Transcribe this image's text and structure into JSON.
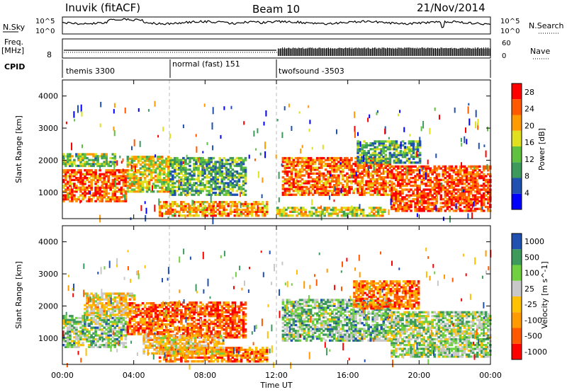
{
  "header": {
    "station": "Inuvik (fitACF)",
    "beam": "Beam 10",
    "date": "21/Nov/2014"
  },
  "noise_panel": {
    "left_label": "N.Sky",
    "right_label": "N.Search",
    "left_ticks": [
      "10^5",
      "10^0"
    ],
    "right_ticks": [
      "10^5",
      "10^0"
    ]
  },
  "freq_panel": {
    "left_label_1": "Freq.",
    "left_label_2": "[MHz]",
    "left_tick": "8",
    "right_label": "Nave",
    "right_ticks": [
      "60",
      "0"
    ]
  },
  "cpid_panel": {
    "label": "CPID",
    "segments": [
      {
        "name": "themis 3300",
        "start_h": 0
      },
      {
        "name": "normal (fast) 151",
        "start_h": 6
      },
      {
        "name": "twofsound -3503",
        "start_h": 12
      }
    ]
  },
  "colors": {
    "power_scale": [
      "#0000ff",
      "#2050b0",
      "#3d9a5b",
      "#60c040",
      "#e0e020",
      "#ff9a00",
      "#ff5a00",
      "#ff0000"
    ],
    "velocity_scale": [
      "#ff0000",
      "#ff5a00",
      "#ff9a00",
      "#ffc000",
      "#c8c8c8",
      "#70d040",
      "#3d9a5b",
      "#2050b0"
    ]
  },
  "chart_data": [
    {
      "type": "heatmap",
      "title": "",
      "xlabel": "Time UT",
      "ylabel": "Slant Range [km]",
      "x_ticks": [
        "00:00",
        "04:00",
        "08:00",
        "12:00",
        "16:00",
        "20:00",
        "00:00"
      ],
      "y_ticks": [
        1000,
        2000,
        3000,
        4000
      ],
      "ylim": [
        180,
        4500
      ],
      "colorbar": {
        "label": "Power [dB]",
        "ticks": [
          4,
          8,
          12,
          16,
          20,
          24,
          28
        ],
        "range": [
          0,
          30
        ]
      },
      "regions": [
        {
          "t0": 0.0,
          "t1": 3.6,
          "r0": 700,
          "r1": 1700,
          "level": 0.82
        },
        {
          "t0": 0.0,
          "t1": 3.0,
          "r0": 1800,
          "r1": 2200,
          "level": 0.45
        },
        {
          "t0": 3.6,
          "t1": 5.9,
          "r0": 1000,
          "r1": 2100,
          "level": 0.55
        },
        {
          "t0": 5.4,
          "t1": 11.5,
          "r0": 250,
          "r1": 700,
          "level": 0.7
        },
        {
          "t0": 6.0,
          "t1": 10.2,
          "r0": 900,
          "r1": 2100,
          "level": 0.38
        },
        {
          "t0": 12.3,
          "t1": 18.3,
          "r0": 900,
          "r1": 2100,
          "level": 0.78
        },
        {
          "t0": 12.0,
          "t1": 18.0,
          "r0": 250,
          "r1": 500,
          "level": 0.55
        },
        {
          "t0": 18.4,
          "t1": 24.0,
          "r0": 400,
          "r1": 1800,
          "level": 0.85
        },
        {
          "t0": 16.5,
          "t1": 20.0,
          "r0": 1900,
          "r1": 2600,
          "level": 0.35
        }
      ]
    },
    {
      "type": "heatmap",
      "title": "",
      "xlabel": "Time UT",
      "ylabel": "Slant Range [km]",
      "x_ticks": [
        "00:00",
        "04:00",
        "08:00",
        "12:00",
        "16:00",
        "20:00",
        "00:00"
      ],
      "y_ticks": [
        1000,
        2000,
        3000,
        4000
      ],
      "ylim": [
        180,
        4500
      ],
      "colorbar": {
        "label": "Velocity [m s^-1]",
        "ticks": [
          "1000",
          "500",
          "100",
          "25",
          "-25",
          "-100",
          "-500",
          "-1000"
        ]
      },
      "regions": [
        {
          "t0": 0.0,
          "t1": 3.6,
          "r0": 700,
          "r1": 1700,
          "level": 0.68
        },
        {
          "t0": 1.2,
          "t1": 4.0,
          "r0": 1700,
          "r1": 2400,
          "level": 0.45
        },
        {
          "t0": 3.6,
          "t1": 5.9,
          "r0": 1100,
          "r1": 2100,
          "level": 0.2
        },
        {
          "t0": 5.4,
          "t1": 11.5,
          "r0": 250,
          "r1": 700,
          "level": 0.25
        },
        {
          "t0": 6.0,
          "t1": 10.2,
          "r0": 1000,
          "r1": 2100,
          "level": 0.18
        },
        {
          "t0": 4.5,
          "t1": 9.0,
          "r0": 500,
          "r1": 1100,
          "level": 0.45
        },
        {
          "t0": 12.3,
          "t1": 18.3,
          "r0": 900,
          "r1": 2200,
          "level": 0.7
        },
        {
          "t0": 16.3,
          "t1": 20.0,
          "r0": 1900,
          "r1": 2800,
          "level": 0.25
        },
        {
          "t0": 18.4,
          "t1": 24.0,
          "r0": 400,
          "r1": 1800,
          "level": 0.65
        }
      ]
    }
  ]
}
